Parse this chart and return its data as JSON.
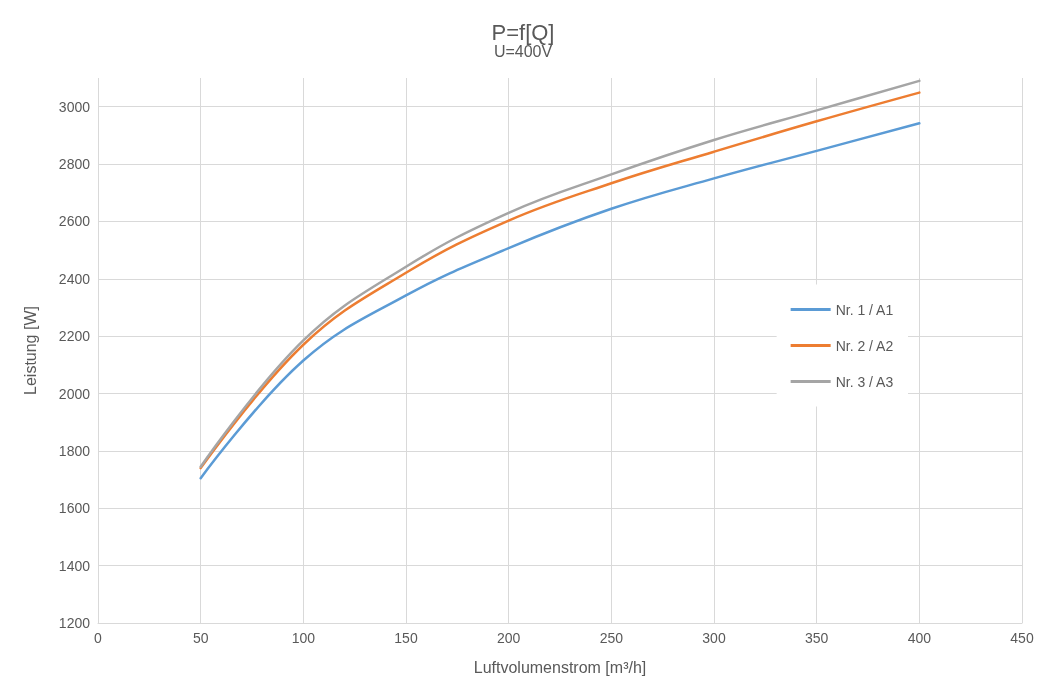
{
  "chart_data": {
    "type": "line",
    "title": "P=f[Q]",
    "subtitle": "U=400V",
    "xlabel": "Luftvolumenstrom [m³/h]",
    "ylabel": "Leistung [W]",
    "x": [
      50,
      100,
      150,
      200,
      250,
      300,
      350,
      400
    ],
    "series": [
      {
        "name": "Nr. 1 / A1",
        "color": "#5b9bd5",
        "values": [
          1705,
          2115,
          2342,
          2507,
          2644,
          2750,
          2846,
          2942
        ]
      },
      {
        "name": "Nr. 2 / A2",
        "color": "#ed7d31",
        "values": [
          1740,
          2170,
          2421,
          2603,
          2733,
          2843,
          2949,
          3049
        ]
      },
      {
        "name": "Nr. 3 / A3",
        "color": "#a5a5a5",
        "values": [
          1745,
          2185,
          2442,
          2630,
          2764,
          2884,
          2987,
          3090
        ]
      }
    ],
    "xlim": [
      0,
      450
    ],
    "xticks": [
      0,
      50,
      100,
      150,
      200,
      250,
      300,
      350,
      400,
      450
    ],
    "ylim": [
      1200,
      3100
    ],
    "yticks": [
      1200,
      1400,
      1600,
      1800,
      2000,
      2200,
      2400,
      2600,
      2800,
      3000
    ],
    "grid": true,
    "legend": "right",
    "marker": "none",
    "line_style": "solid"
  }
}
